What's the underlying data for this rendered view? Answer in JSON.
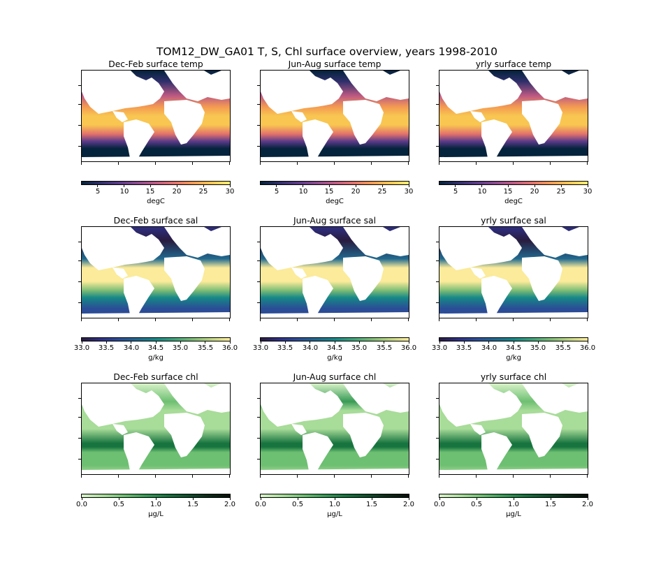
{
  "figure": {
    "title": "TOM12_DW_GA01 T, S, Chl surface overview, years 1998-2010"
  },
  "chart_data": {
    "type": "heatmap",
    "columns": [
      "Dec-Feb",
      "Jun-Aug",
      "yrly"
    ],
    "rows": [
      {
        "variable": "temp",
        "titles": [
          "Dec-Feb surface temp",
          "Jun-Aug surface temp",
          "yrly surface temp"
        ],
        "units": "degC",
        "range": [
          2,
          30
        ],
        "ticks": [
          "5",
          "10",
          "15",
          "20",
          "25",
          "30"
        ],
        "tick_values": [
          5,
          10,
          15,
          20,
          25,
          30
        ],
        "colormap": [
          "#04233c",
          "#2f2f6b",
          "#5b3a8a",
          "#8b4a8f",
          "#be5a83",
          "#e3716c",
          "#f49a52",
          "#f8c651",
          "#f6ee6f"
        ]
      },
      {
        "variable": "sal",
        "titles": [
          "Dec-Feb surface sal",
          "Jun-Aug surface sal",
          "yrly surface sal"
        ],
        "units": "g/kg",
        "range": [
          33.0,
          36.0
        ],
        "ticks": [
          "33.0",
          "33.5",
          "34.0",
          "34.5",
          "35.0",
          "35.5",
          "36.0"
        ],
        "tick_values": [
          33.0,
          33.5,
          34.0,
          34.5,
          35.0,
          35.5,
          36.0
        ],
        "colormap": [
          "#291c3f",
          "#2e2f82",
          "#2b4c96",
          "#21698f",
          "#168887",
          "#3ea37a",
          "#7cbc76",
          "#bfd585",
          "#fbeb9a"
        ]
      },
      {
        "variable": "chl",
        "titles": [
          "Dec-Feb surface chl",
          "Jun-Aug surface chl",
          "yrly surface chl"
        ],
        "units": "µg/L",
        "range": [
          0.0,
          2.0
        ],
        "ticks": [
          "0.0",
          "0.5",
          "1.0",
          "1.5",
          "2.0"
        ],
        "tick_values": [
          0.0,
          0.5,
          1.0,
          1.5,
          2.0
        ],
        "colormap": [
          "#d8f2c8",
          "#a8dc99",
          "#6dbf72",
          "#389a56",
          "#17743f",
          "#0d4f2c",
          "#0a2a17",
          "#06110a"
        ]
      }
    ]
  }
}
